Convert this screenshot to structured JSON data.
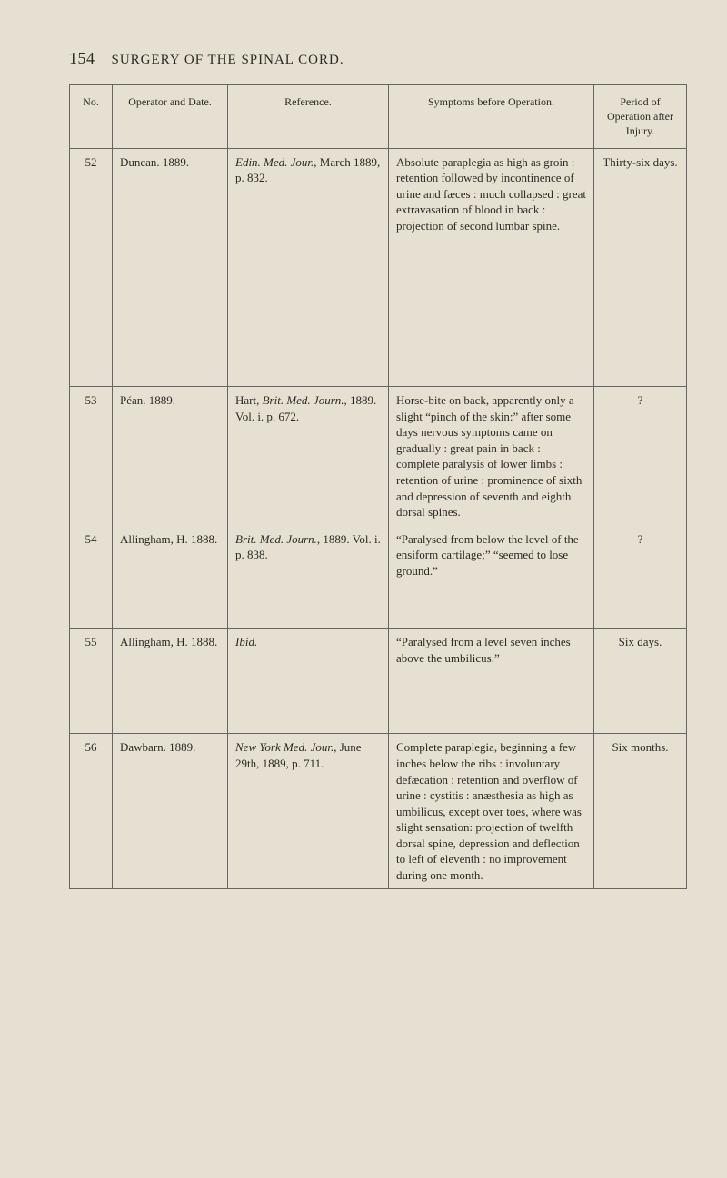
{
  "header": {
    "page_number": "154",
    "title": "SURGERY OF THE SPINAL CORD."
  },
  "columns": {
    "no": "No.",
    "operator": "Operator and Date.",
    "reference": "Reference.",
    "symptoms": "Symptoms before Operation.",
    "period": "Period of Operation after Injury."
  },
  "rows": [
    {
      "no": "52",
      "operator": "Duncan. 1889.",
      "reference_italic": "Edin. Med. Jour.",
      "reference_rest": ", March 1889, p. 832.",
      "symptoms": "Absolute paraplegia as high as groin : retention followed by incontinence of urine and fæces : much collapsed : great extravasation of blood in back : projection of second lumbar spine.",
      "period": "Thirty-six days."
    },
    {
      "no": "53",
      "operator": "Péan. 1889.",
      "reference_italic": "Brit. Med. Journ.",
      "reference_rest": ", 1889. Vol. i. p. 672.",
      "reference_prefix": "Hart, ",
      "symptoms": "Horse-bite on back, apparently only a slight “pinch of the skin:” after some days nervous symptoms came on gradually : great pain in back : complete paralysis of lower limbs : retention of urine : prominence of sixth and depression of seventh and eighth dorsal spines.",
      "period": "?"
    },
    {
      "no": "54",
      "operator": "Allingham, H. 1888.",
      "reference_italic": "Brit. Med. Journ.",
      "reference_rest": ", 1889. Vol. i. p. 838.",
      "symptoms": "“Paralysed from below the level of the ensiform cartilage;” “seemed to lose ground.”",
      "period": "?"
    },
    {
      "no": "55",
      "operator": "Allingham, H. 1888.",
      "reference_italic": "Ibid.",
      "reference_rest": "",
      "symptoms": "“Paralysed from a level seven inches above the umbilicus.”",
      "period": "Six days."
    },
    {
      "no": "56",
      "operator": "Dawbarn. 1889.",
      "reference_italic": "New York Med. Jour.",
      "reference_rest": ", June 29th, 1889, p. 711.",
      "symptoms": "Complete paraplegia, beginning a few inches below the ribs : involuntary defæcation : retention and overflow of urine : cystitis : anæsthesia as high as umbilicus, except over toes, where was slight sensation: projection of twelfth dorsal spine, depression and deflection to left of eleventh : no improvement during one month.",
      "period": "Six months."
    }
  ]
}
